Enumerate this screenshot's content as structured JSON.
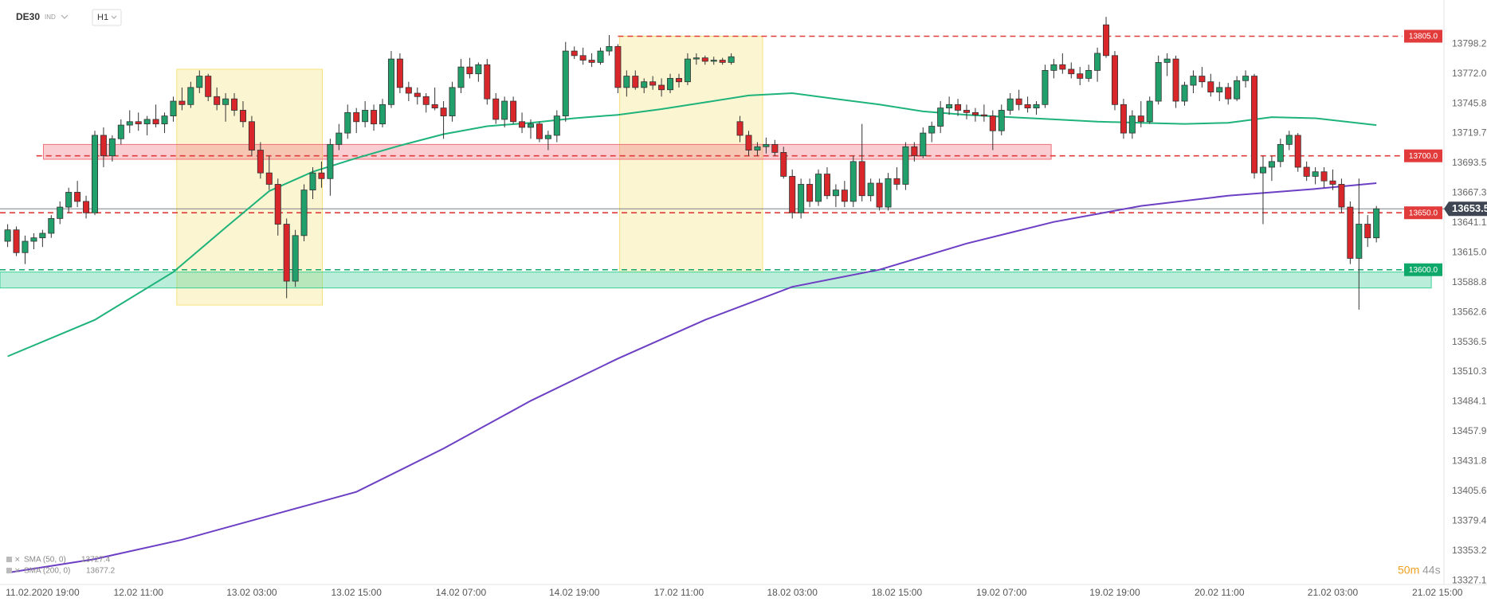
{
  "chart_data": {
    "type": "candlestick",
    "symbol": "DE30",
    "market": "IND",
    "interval": "H1",
    "ylim": [
      13323.7,
      13836.8
    ],
    "yticks": [
      {
        "value": 13798.2,
        "label": "13798.2"
      },
      {
        "value": 13772.0,
        "label": "13772.0"
      },
      {
        "value": 13745.8,
        "label": "13745.8"
      },
      {
        "value": 13719.7,
        "label": "13719.7"
      },
      {
        "value": 13693.5,
        "label": "13693.5"
      },
      {
        "value": 13667.3,
        "label": "13667.3"
      },
      {
        "value": 13641.1,
        "label": "13641.1"
      },
      {
        "value": 13615.0,
        "label": "13615.0"
      },
      {
        "value": 13588.8,
        "label": "13588.8"
      },
      {
        "value": 13562.6,
        "label": "13562.6"
      },
      {
        "value": 13536.5,
        "label": "13536.5"
      },
      {
        "value": 13510.3,
        "label": "13510.3"
      },
      {
        "value": 13484.1,
        "label": "13484.1"
      },
      {
        "value": 13457.9,
        "label": "13457.9"
      },
      {
        "value": 13431.8,
        "label": "13431.8"
      },
      {
        "value": 13405.6,
        "label": "13405.6"
      },
      {
        "value": 13379.4,
        "label": "13379.4"
      },
      {
        "value": 13353.2,
        "label": "13353.2"
      },
      {
        "value": 13327.1,
        "label": "13327.1"
      }
    ],
    "categories": [
      null,
      null,
      null,
      null,
      "11.02.2020 19:00",
      null,
      null,
      null,
      null,
      null,
      null,
      null,
      null,
      null,
      null,
      "12.02 11:00",
      null,
      null,
      null,
      null,
      null,
      null,
      null,
      null,
      null,
      null,
      null,
      null,
      "13.02 03:00",
      null,
      null,
      null,
      null,
      null,
      null,
      null,
      null,
      null,
      null,
      null,
      "13.02 15:00",
      null,
      null,
      null,
      null,
      null,
      null,
      null,
      null,
      null,
      null,
      null,
      "14.02 07:00",
      null,
      null,
      null,
      null,
      null,
      null,
      null,
      null,
      null,
      null,
      null,
      null,
      "14.02 19:00",
      null,
      null,
      null,
      null,
      null,
      null,
      null,
      null,
      null,
      null,
      null,
      "17.02 11:00",
      null,
      null,
      null,
      null,
      null,
      null,
      null,
      null,
      null,
      null,
      null,
      null,
      "18.02 03:00",
      null,
      null,
      null,
      null,
      null,
      null,
      null,
      null,
      null,
      null,
      null,
      "18.02 15:00",
      null,
      null,
      null,
      null,
      null,
      null,
      null,
      null,
      null,
      null,
      null,
      "19.02 07:00",
      null,
      null,
      null,
      null,
      null,
      null,
      null,
      null,
      null,
      null,
      null,
      null,
      "19.02 19:00",
      null,
      null,
      null,
      null,
      null,
      null,
      null,
      null,
      null,
      null,
      null,
      "20.02 11:00",
      null,
      null,
      null,
      null,
      null,
      null,
      null,
      null,
      null,
      null,
      null,
      null,
      "21.02 03:00",
      null,
      null,
      null,
      null,
      null,
      null,
      null,
      null,
      null,
      null,
      null,
      "21.02 15:00"
    ],
    "candles": [
      [
        13625,
        13640,
        13620,
        13635
      ],
      [
        13635,
        13638,
        13612,
        13615
      ],
      [
        13615,
        13630,
        13605,
        13625
      ],
      [
        13625,
        13632,
        13618,
        13628
      ],
      [
        13628,
        13635,
        13620,
        13632
      ],
      [
        13632,
        13648,
        13628,
        13645
      ],
      [
        13645,
        13660,
        13640,
        13655
      ],
      [
        13655,
        13672,
        13650,
        13668
      ],
      [
        13668,
        13678,
        13655,
        13660
      ],
      [
        13660,
        13665,
        13645,
        13650
      ],
      [
        13650,
        13722,
        13648,
        13718
      ],
      [
        13718,
        13725,
        13690,
        13700
      ],
      [
        13700,
        13718,
        13695,
        13715
      ],
      [
        13715,
        13732,
        13710,
        13727
      ],
      [
        13727,
        13740,
        13720,
        13730
      ],
      [
        13730,
        13738,
        13722,
        13728
      ],
      [
        13728,
        13735,
        13718,
        13732
      ],
      [
        13732,
        13745,
        13725,
        13728
      ],
      [
        13728,
        13738,
        13720,
        13735
      ],
      [
        13735,
        13752,
        13730,
        13748
      ],
      [
        13748,
        13760,
        13740,
        13745
      ],
      [
        13745,
        13765,
        13742,
        13760
      ],
      [
        13760,
        13775,
        13755,
        13770
      ],
      [
        13770,
        13772,
        13748,
        13752
      ],
      [
        13752,
        13760,
        13740,
        13745
      ],
      [
        13745,
        13755,
        13730,
        13750
      ],
      [
        13750,
        13755,
        13735,
        13740
      ],
      [
        13740,
        13748,
        13725,
        13730
      ],
      [
        13730,
        13735,
        13700,
        13705
      ],
      [
        13705,
        13712,
        13680,
        13685
      ],
      [
        13685,
        13700,
        13670,
        13675
      ],
      [
        13675,
        13680,
        13630,
        13640
      ],
      [
        13640,
        13645,
        13575,
        13590
      ],
      [
        13590,
        13635,
        13585,
        13630
      ],
      [
        13630,
        13675,
        13625,
        13670
      ],
      [
        13670,
        13690,
        13662,
        13685
      ],
      [
        13685,
        13695,
        13672,
        13680
      ],
      [
        13680,
        13715,
        13665,
        13710
      ],
      [
        13710,
        13728,
        13705,
        13720
      ],
      [
        13720,
        13745,
        13715,
        13738
      ],
      [
        13738,
        13742,
        13720,
        13730
      ],
      [
        13730,
        13748,
        13725,
        13740
      ],
      [
        13740,
        13745,
        13722,
        13728
      ],
      [
        13728,
        13750,
        13725,
        13745
      ],
      [
        13745,
        13792,
        13742,
        13785
      ],
      [
        13785,
        13790,
        13755,
        13760
      ],
      [
        13760,
        13765,
        13748,
        13755
      ],
      [
        13755,
        13760,
        13745,
        13752
      ],
      [
        13752,
        13755,
        13738,
        13745
      ],
      [
        13745,
        13760,
        13740,
        13742
      ],
      [
        13742,
        13748,
        13715,
        13735
      ],
      [
        13735,
        13765,
        13730,
        13760
      ],
      [
        13760,
        13785,
        13755,
        13778
      ],
      [
        13778,
        13786,
        13768,
        13772
      ],
      [
        13772,
        13782,
        13765,
        13780
      ],
      [
        13780,
        13785,
        13745,
        13750
      ],
      [
        13750,
        13755,
        13728,
        13732
      ],
      [
        13732,
        13752,
        13725,
        13748
      ],
      [
        13748,
        13752,
        13728,
        13730
      ],
      [
        13730,
        13738,
        13720,
        13725
      ],
      [
        13725,
        13732,
        13715,
        13728
      ],
      [
        13728,
        13730,
        13712,
        13715
      ],
      [
        13715,
        13722,
        13705,
        13718
      ],
      [
        13718,
        13740,
        13712,
        13735
      ],
      [
        13735,
        13800,
        13730,
        13792
      ],
      [
        13792,
        13796,
        13785,
        13788
      ],
      [
        13788,
        13795,
        13780,
        13784
      ],
      [
        13784,
        13790,
        13778,
        13782
      ],
      [
        13782,
        13795,
        13780,
        13792
      ],
      [
        13792,
        13806,
        13788,
        13796
      ],
      [
        13796,
        13798,
        13755,
        13760
      ],
      [
        13760,
        13775,
        13752,
        13770
      ],
      [
        13770,
        13775,
        13758,
        13760
      ],
      [
        13760,
        13768,
        13755,
        13765
      ],
      [
        13765,
        13770,
        13758,
        13762
      ],
      [
        13762,
        13768,
        13752,
        13758
      ],
      [
        13758,
        13772,
        13755,
        13768
      ],
      [
        13768,
        13772,
        13760,
        13765
      ],
      [
        13765,
        13790,
        13762,
        13785
      ],
      [
        13785,
        13790,
        13780,
        13786
      ],
      [
        13786,
        13788,
        13780,
        13783
      ],
      [
        13783,
        13787,
        13780,
        13784
      ],
      [
        13784,
        13786,
        13780,
        13782
      ],
      [
        13782,
        13790,
        13780,
        13787
      ],
      [
        13730,
        13735,
        13712,
        13718
      ],
      [
        13718,
        13722,
        13700,
        13705
      ],
      [
        13705,
        13712,
        13700,
        13708
      ],
      [
        13708,
        13716,
        13702,
        13710
      ],
      [
        13710,
        13714,
        13700,
        13703
      ],
      [
        13703,
        13708,
        13680,
        13682
      ],
      [
        13682,
        13688,
        13645,
        13650
      ],
      [
        13650,
        13680,
        13645,
        13675
      ],
      [
        13675,
        13680,
        13655,
        13660
      ],
      [
        13660,
        13688,
        13656,
        13684
      ],
      [
        13684,
        13690,
        13662,
        13665
      ],
      [
        13665,
        13675,
        13655,
        13670
      ],
      [
        13670,
        13678,
        13655,
        13660
      ],
      [
        13660,
        13700,
        13655,
        13695
      ],
      [
        13695,
        13728,
        13660,
        13665
      ],
      [
        13665,
        13680,
        13660,
        13676
      ],
      [
        13676,
        13680,
        13652,
        13655
      ],
      [
        13655,
        13685,
        13652,
        13680
      ],
      [
        13680,
        13690,
        13670,
        13675
      ],
      [
        13675,
        13712,
        13670,
        13708
      ],
      [
        13708,
        13712,
        13695,
        13700
      ],
      [
        13700,
        13725,
        13698,
        13720
      ],
      [
        13720,
        13730,
        13712,
        13726
      ],
      [
        13726,
        13748,
        13720,
        13742
      ],
      [
        13742,
        13752,
        13736,
        13745
      ],
      [
        13745,
        13750,
        13735,
        13740
      ],
      [
        13740,
        13745,
        13732,
        13738
      ],
      [
        13738,
        13742,
        13730,
        13736
      ],
      [
        13736,
        13745,
        13730,
        13735
      ],
      [
        13735,
        13740,
        13705,
        13722
      ],
      [
        13722,
        13745,
        13718,
        13740
      ],
      [
        13740,
        13755,
        13736,
        13750
      ],
      [
        13750,
        13758,
        13740,
        13745
      ],
      [
        13745,
        13752,
        13738,
        13742
      ],
      [
        13742,
        13748,
        13736,
        13745
      ],
      [
        13745,
        13780,
        13742,
        13775
      ],
      [
        13775,
        13785,
        13768,
        13780
      ],
      [
        13780,
        13790,
        13772,
        13776
      ],
      [
        13776,
        13782,
        13768,
        13772
      ],
      [
        13772,
        13778,
        13762,
        13768
      ],
      [
        13768,
        13780,
        13765,
        13775
      ],
      [
        13775,
        13795,
        13765,
        13790
      ],
      [
        13815,
        13822,
        13786,
        13788
      ],
      [
        13788,
        13792,
        13740,
        13745
      ],
      [
        13745,
        13750,
        13715,
        13720
      ],
      [
        13720,
        13740,
        13715,
        13735
      ],
      [
        13735,
        13748,
        13725,
        13730
      ],
      [
        13730,
        13752,
        13728,
        13748
      ],
      [
        13748,
        13788,
        13745,
        13782
      ],
      [
        13782,
        13790,
        13770,
        13785
      ],
      [
        13785,
        13788,
        13742,
        13748
      ],
      [
        13748,
        13765,
        13744,
        13762
      ],
      [
        13762,
        13775,
        13755,
        13770
      ],
      [
        13770,
        13778,
        13760,
        13765
      ],
      [
        13765,
        13772,
        13752,
        13756
      ],
      [
        13756,
        13765,
        13748,
        13760
      ],
      [
        13760,
        13764,
        13745,
        13750
      ],
      [
        13750,
        13770,
        13748,
        13766
      ],
      [
        13766,
        13775,
        13760,
        13770
      ],
      [
        13770,
        13772,
        13680,
        13685
      ],
      [
        13685,
        13700,
        13640,
        13690
      ],
      [
        13690,
        13700,
        13678,
        13695
      ],
      [
        13695,
        13715,
        13690,
        13710
      ],
      [
        13710,
        13722,
        13705,
        13718
      ],
      [
        13718,
        13720,
        13686,
        13690
      ],
      [
        13690,
        13695,
        13678,
        13682
      ],
      [
        13682,
        13690,
        13675,
        13686
      ],
      [
        13686,
        13690,
        13672,
        13678
      ],
      [
        13678,
        13688,
        13670,
        13675
      ],
      [
        13675,
        13680,
        13650,
        13655
      ],
      [
        13655,
        13660,
        13605,
        13610
      ],
      [
        13610,
        13680,
        13565,
        13640
      ],
      [
        13640,
        13648,
        13620,
        13628
      ],
      [
        13628,
        13656,
        13624,
        13653.5
      ],
      null,
      null,
      null,
      null,
      null,
      null,
      null
    ],
    "up_color": "#22a06b",
    "down_color": "#d9262b",
    "smas": [
      {
        "name": "SMA (50, 0)",
        "last": 13727.4,
        "color": "#1db37a",
        "x": [
          0,
          10,
          19,
          25,
          30,
          35,
          40,
          45,
          50,
          55,
          60,
          65,
          70,
          75,
          80,
          85,
          90,
          95,
          100,
          105,
          110,
          115,
          120,
          125,
          130,
          135,
          140,
          145,
          150,
          157
        ],
        "values": [
          13524,
          13556,
          13598,
          13637,
          13669,
          13686,
          13698,
          13709,
          13719,
          13726,
          13729,
          13733,
          13736,
          13741,
          13747,
          13753,
          13755,
          13750,
          13745,
          13739,
          13736,
          13734,
          13732,
          13730,
          13729,
          13728,
          13729,
          13734,
          13733,
          13727
        ]
      },
      {
        "name": "SMA (200, 0)",
        "last": 13677.2,
        "color": "#6c3fc4",
        "x": [
          0,
          10,
          20,
          30,
          40,
          50,
          60,
          70,
          80,
          90,
          100,
          110,
          120,
          130,
          140,
          150,
          157
        ],
        "values": [
          13334,
          13346,
          13363,
          13384,
          13405,
          13443,
          13485,
          13522,
          13556,
          13585,
          13600,
          13623,
          13642,
          13656,
          13665,
          13671,
          13676
        ]
      }
    ],
    "price": 13653.5,
    "levels": [
      {
        "value": 13805.0,
        "label": "13805.0",
        "from": 70,
        "color": "#e23b3b"
      },
      {
        "value": 13700.0,
        "label": "13700.0",
        "from": 3.3,
        "color": "#e23b3b"
      },
      {
        "value": 13650.0,
        "label": "13650.0",
        "from": -1,
        "color": "#e23b3b"
      },
      {
        "value": 13600.0,
        "label": "13600.0",
        "from": -1,
        "color": "#0ea86a"
      }
    ],
    "zones": [
      {
        "x": [
          19.4,
          36.1
        ],
        "y": [
          13569,
          13776
        ],
        "color": "#f6e27a"
      },
      {
        "x": [
          70.2,
          86.6
        ],
        "y": [
          13598,
          13805
        ],
        "color": "#f6e27a"
      },
      {
        "x": [
          4.1,
          119.7
        ],
        "y": [
          13697,
          13710
        ],
        "color": "#ef6f7a"
      },
      {
        "x": [
          -1,
          163.3
        ],
        "y": [
          13584,
          13598
        ],
        "color": "#3ccf96"
      }
    ],
    "timer": {
      "minutes": "50m",
      "seconds": "44s"
    }
  }
}
